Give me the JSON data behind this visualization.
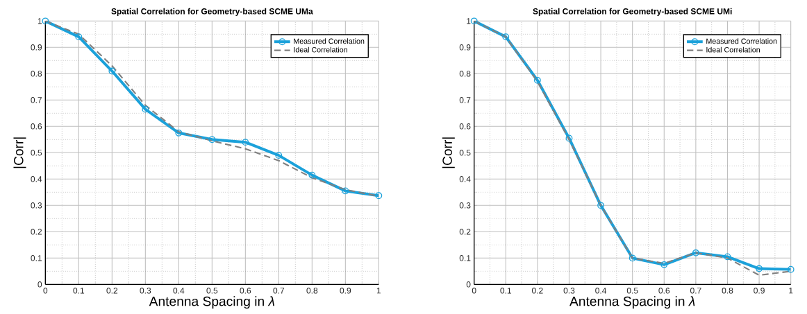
{
  "chart_data": [
    {
      "type": "line",
      "title": "Spatial Correlation for Geometry-based SCME UMa",
      "xlabel": "Antenna Spacing in *λ*",
      "ylabel": "|Corr|",
      "x": [
        0,
        0.1,
        0.2,
        0.3,
        0.4,
        0.5,
        0.6,
        0.7,
        0.8,
        0.9,
        1
      ],
      "series": [
        {
          "name": "Measured Correlation",
          "color": "#1ba1da",
          "marker": "circle",
          "line_style": "solid",
          "values": [
            1,
            0.94,
            0.81,
            0.665,
            0.575,
            0.55,
            0.54,
            0.49,
            0.415,
            0.355,
            0.337
          ]
        },
        {
          "name": "Ideal Correlation",
          "color": "#808080",
          "marker": "none",
          "line_style": "dashed",
          "values": [
            1,
            0.95,
            0.83,
            0.68,
            0.58,
            0.545,
            0.515,
            0.47,
            0.405,
            0.36,
            0.335
          ]
        }
      ],
      "xlim": [
        0,
        1
      ],
      "ylim": [
        0,
        1
      ],
      "xticks": [
        0,
        0.1,
        0.2,
        0.3,
        0.4,
        0.5,
        0.6,
        0.7,
        0.8,
        0.9,
        1
      ],
      "yticks": [
        0,
        0.1,
        0.2,
        0.3,
        0.4,
        0.5,
        0.6,
        0.7,
        0.8,
        0.9,
        1
      ],
      "grid": true,
      "legend": "top right"
    },
    {
      "type": "line",
      "title": "Spatial Correlation for Geometry-based SCME UMi",
      "xlabel": "Antenna Spacing in *λ*",
      "ylabel": "|Corr|",
      "x": [
        0,
        0.1,
        0.2,
        0.3,
        0.4,
        0.5,
        0.6,
        0.7,
        0.8,
        0.9,
        1
      ],
      "series": [
        {
          "name": "Measured Correlation",
          "color": "#1ba1da",
          "marker": "circle",
          "line_style": "solid",
          "values": [
            1,
            0.94,
            0.775,
            0.555,
            0.3,
            0.1,
            0.075,
            0.12,
            0.105,
            0.06,
            0.057
          ]
        },
        {
          "name": "Ideal Correlation",
          "color": "#808080",
          "marker": "none",
          "line_style": "dashed",
          "values": [
            1,
            0.94,
            0.77,
            0.55,
            0.3,
            0.1,
            0.08,
            0.12,
            0.1,
            0.035,
            0.05
          ]
        }
      ],
      "xlim": [
        0,
        1
      ],
      "ylim": [
        0,
        1
      ],
      "xticks": [
        0,
        0.1,
        0.2,
        0.3,
        0.4,
        0.5,
        0.6,
        0.7,
        0.8,
        0.9,
        1
      ],
      "yticks": [
        0,
        0.1,
        0.2,
        0.3,
        0.4,
        0.5,
        0.6,
        0.7,
        0.8,
        0.9,
        1
      ],
      "grid": true,
      "legend": "top right"
    }
  ]
}
